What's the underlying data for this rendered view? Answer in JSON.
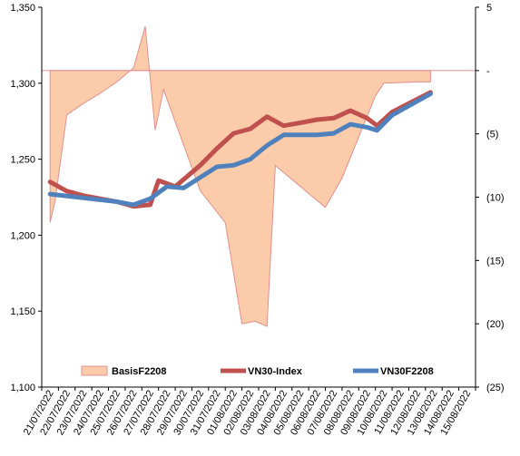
{
  "chart_data": {
    "type": "line",
    "categories": [
      "21/07/2022",
      "22/07/2022",
      "23/07/2022",
      "24/07/2022",
      "25/07/2022",
      "26/07/2022",
      "27/07/2022",
      "28/07/2022",
      "29/07/2022",
      "30/07/2022",
      "31/07/2022",
      "01/08/2022",
      "02/08/2022",
      "03/08/2022",
      "04/08/2022",
      "05/08/2022",
      "06/08/2022",
      "07/08/2022",
      "08/08/2022",
      "09/08/2022",
      "10/08/2022",
      "11/08/2022",
      "12/08/2022",
      "13/08/2022",
      "14/08/2022",
      "15/08/2022"
    ],
    "y_left": {
      "min": 1100,
      "max": 1350,
      "ticks": [
        "1,100",
        "1,150",
        "1,200",
        "1,250",
        "1,300",
        "1,350"
      ],
      "tick_values": [
        1100,
        1150,
        1200,
        1250,
        1300,
        1350
      ]
    },
    "y_right": {
      "min": -25,
      "max": 5,
      "ticks": [
        "(25)",
        "(20)",
        "(15)",
        "(10)",
        "(5)",
        "-",
        "5"
      ],
      "tick_values": [
        -25,
        -20,
        -15,
        -10,
        -5,
        0,
        5
      ]
    },
    "grid": false,
    "legend_position": "bottom",
    "series": [
      {
        "name": "BasisF2208",
        "type": "area",
        "axis": "right",
        "color": "#FCCCAA",
        "edge_color": "#E0908F",
        "points": [
          [
            0,
            -12.0
          ],
          [
            0.3,
            -10.3
          ],
          [
            1.0,
            -3.5
          ],
          [
            2.0,
            -2.6
          ],
          [
            3.0,
            -1.8
          ],
          [
            4.0,
            -0.9
          ],
          [
            5.0,
            0.2
          ],
          [
            5.7,
            3.5
          ],
          [
            6.3,
            -4.7
          ],
          [
            6.8,
            -1.5
          ],
          [
            9.0,
            -9.5
          ],
          [
            10.5,
            -12.0
          ],
          [
            11.5,
            -20.0
          ],
          [
            12.3,
            -19.8
          ],
          [
            13.0,
            -20.2
          ],
          [
            13.5,
            -7.5
          ],
          [
            16.5,
            -10.8
          ],
          [
            17.5,
            -8.5
          ],
          [
            19.5,
            -2.0
          ],
          [
            20.0,
            -1.0
          ],
          [
            22.0,
            -0.9
          ],
          [
            22.8,
            -0.9
          ]
        ]
      },
      {
        "name": "VN30-Index",
        "type": "line",
        "axis": "left",
        "color": "#C0504D",
        "points": [
          [
            0,
            1235
          ],
          [
            1,
            1229
          ],
          [
            2,
            1226
          ],
          [
            3,
            1224
          ],
          [
            4,
            1222
          ],
          [
            5,
            1219
          ],
          [
            6,
            1220
          ],
          [
            6.5,
            1236
          ],
          [
            7.5,
            1232
          ],
          [
            9,
            1246
          ],
          [
            10,
            1257
          ],
          [
            11,
            1267
          ],
          [
            12,
            1270
          ],
          [
            13,
            1278
          ],
          [
            14,
            1272
          ],
          [
            15,
            1274
          ],
          [
            16,
            1276
          ],
          [
            17,
            1277
          ],
          [
            18,
            1282
          ],
          [
            19,
            1277
          ],
          [
            19.6,
            1272
          ],
          [
            20.5,
            1281
          ],
          [
            22.8,
            1294
          ]
        ]
      },
      {
        "name": "VN30F2208",
        "type": "line",
        "axis": "left",
        "color": "#4F81BD",
        "points": [
          [
            0,
            1227
          ],
          [
            4,
            1222
          ],
          [
            5,
            1220
          ],
          [
            6,
            1224
          ],
          [
            7,
            1232
          ],
          [
            8,
            1231
          ],
          [
            9,
            1238
          ],
          [
            10,
            1245
          ],
          [
            11,
            1246
          ],
          [
            12,
            1250
          ],
          [
            13,
            1259
          ],
          [
            14,
            1266
          ],
          [
            15,
            1266
          ],
          [
            16,
            1266
          ],
          [
            17,
            1267
          ],
          [
            18,
            1273
          ],
          [
            19,
            1271
          ],
          [
            19.6,
            1269
          ],
          [
            20.5,
            1279
          ],
          [
            22.8,
            1293
          ]
        ]
      }
    ]
  }
}
